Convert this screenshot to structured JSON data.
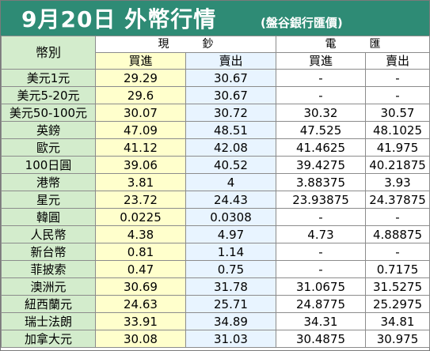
{
  "header": {
    "title": "9月20日 外幣行情",
    "subtitle": "(盤谷銀行匯價)"
  },
  "columns": {
    "currency": "幣別",
    "cash": "現　　　鈔",
    "telegraphic": "電　　　匯",
    "buy": "買進",
    "sell": "賣出"
  },
  "rows": [
    {
      "name": "美元1元",
      "cash_buy": "29.29",
      "cash_sell": "30.67",
      "tt_buy": "-",
      "tt_sell": "-"
    },
    {
      "name": "美元5-20元",
      "cash_buy": "29.6",
      "cash_sell": "30.67",
      "tt_buy": "-",
      "tt_sell": "-"
    },
    {
      "name": "美元50-100元",
      "cash_buy": "30.07",
      "cash_sell": "30.72",
      "tt_buy": "30.32",
      "tt_sell": "30.57"
    },
    {
      "name": "英鎊",
      "cash_buy": "47.09",
      "cash_sell": "48.51",
      "tt_buy": "47.525",
      "tt_sell": "48.1025"
    },
    {
      "name": "歐元",
      "cash_buy": "41.12",
      "cash_sell": "42.08",
      "tt_buy": "41.4625",
      "tt_sell": "41.975"
    },
    {
      "name": "100日圓",
      "cash_buy": "39.06",
      "cash_sell": "40.52",
      "tt_buy": "39.4275",
      "tt_sell": "40.21875"
    },
    {
      "name": "港幣",
      "cash_buy": "3.81",
      "cash_sell": "4",
      "tt_buy": "3.88375",
      "tt_sell": "3.93"
    },
    {
      "name": "星元",
      "cash_buy": "23.72",
      "cash_sell": "24.43",
      "tt_buy": "23.93875",
      "tt_sell": "24.37875"
    },
    {
      "name": "韓圓",
      "cash_buy": "0.0225",
      "cash_sell": "0.0308",
      "tt_buy": "-",
      "tt_sell": "-"
    },
    {
      "name": "人民幣",
      "cash_buy": "4.38",
      "cash_sell": "4.97",
      "tt_buy": "4.73",
      "tt_sell": "4.88875"
    },
    {
      "name": "新台幣",
      "cash_buy": "0.81",
      "cash_sell": "1.14",
      "tt_buy": "-",
      "tt_sell": "-"
    },
    {
      "name": "菲披索",
      "cash_buy": "0.47",
      "cash_sell": "0.75",
      "tt_buy": "-",
      "tt_sell": "0.7175"
    },
    {
      "name": "澳洲元",
      "cash_buy": "30.69",
      "cash_sell": "31.78",
      "tt_buy": "31.0675",
      "tt_sell": "31.5275"
    },
    {
      "name": "紐西蘭元",
      "cash_buy": "24.63",
      "cash_sell": "25.71",
      "tt_buy": "24.8775",
      "tt_sell": "25.2975"
    },
    {
      "name": "瑞士法朗",
      "cash_buy": "33.91",
      "cash_sell": "34.89",
      "tt_buy": "34.31",
      "tt_sell": "34.81"
    },
    {
      "name": "加拿大元",
      "cash_buy": "30.08",
      "cash_sell": "31.03",
      "tt_buy": "30.4875",
      "tt_sell": "30.975"
    }
  ],
  "colors": {
    "header_bg": "#2e8b75",
    "name_bg": "#d3eccc",
    "cash_buy_bg": "#ffffcc",
    "cash_sell_bg": "#e8f4ff"
  }
}
